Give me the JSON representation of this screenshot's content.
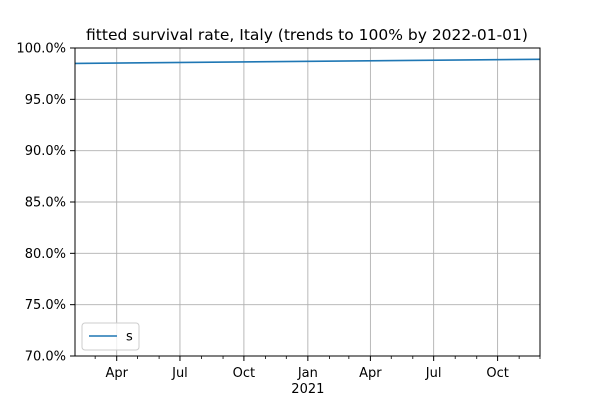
{
  "chart_data": {
    "type": "line",
    "title": "fitted survival rate, Italy (trends to 100% by 2022-01-01)",
    "xlabel": "",
    "ylabel": "",
    "xlim": [
      "2020-02-01",
      "2021-12-01"
    ],
    "ylim": [
      0.7,
      1.0
    ],
    "grid": true,
    "legend_position": "lower-left",
    "x_major_ticks": [
      {
        "date": "2020-04-01",
        "label": "Apr"
      },
      {
        "date": "2020-07-01",
        "label": "Jul"
      },
      {
        "date": "2020-10-01",
        "label": "Oct"
      },
      {
        "date": "2021-01-01",
        "label": "Jan"
      },
      {
        "date": "2021-04-01",
        "label": "Apr"
      },
      {
        "date": "2021-07-01",
        "label": "Jul"
      },
      {
        "date": "2021-10-01",
        "label": "Oct"
      }
    ],
    "x_minor_ticks": [
      "2020-03-01",
      "2020-05-01",
      "2020-06-01",
      "2020-08-01",
      "2020-09-01",
      "2020-11-01",
      "2020-12-01",
      "2021-02-01",
      "2021-03-01",
      "2021-05-01",
      "2021-06-01",
      "2021-08-01",
      "2021-09-01",
      "2021-11-01",
      "2021-12-01"
    ],
    "x_year_label": {
      "date": "2021-01-01",
      "label": "2021"
    },
    "y_ticks": [
      {
        "value": 0.7,
        "label": "70.0%"
      },
      {
        "value": 0.75,
        "label": "75.0%"
      },
      {
        "value": 0.8,
        "label": "80.0%"
      },
      {
        "value": 0.85,
        "label": "85.0%"
      },
      {
        "value": 0.9,
        "label": "90.0%"
      },
      {
        "value": 0.95,
        "label": "95.0%"
      },
      {
        "value": 1.0,
        "label": "100.0%"
      }
    ],
    "series": [
      {
        "name": "s",
        "color": "#1f77b4",
        "x": [
          "2020-02-01",
          "2021-12-01"
        ],
        "y": [
          0.985,
          0.989
        ]
      }
    ]
  }
}
